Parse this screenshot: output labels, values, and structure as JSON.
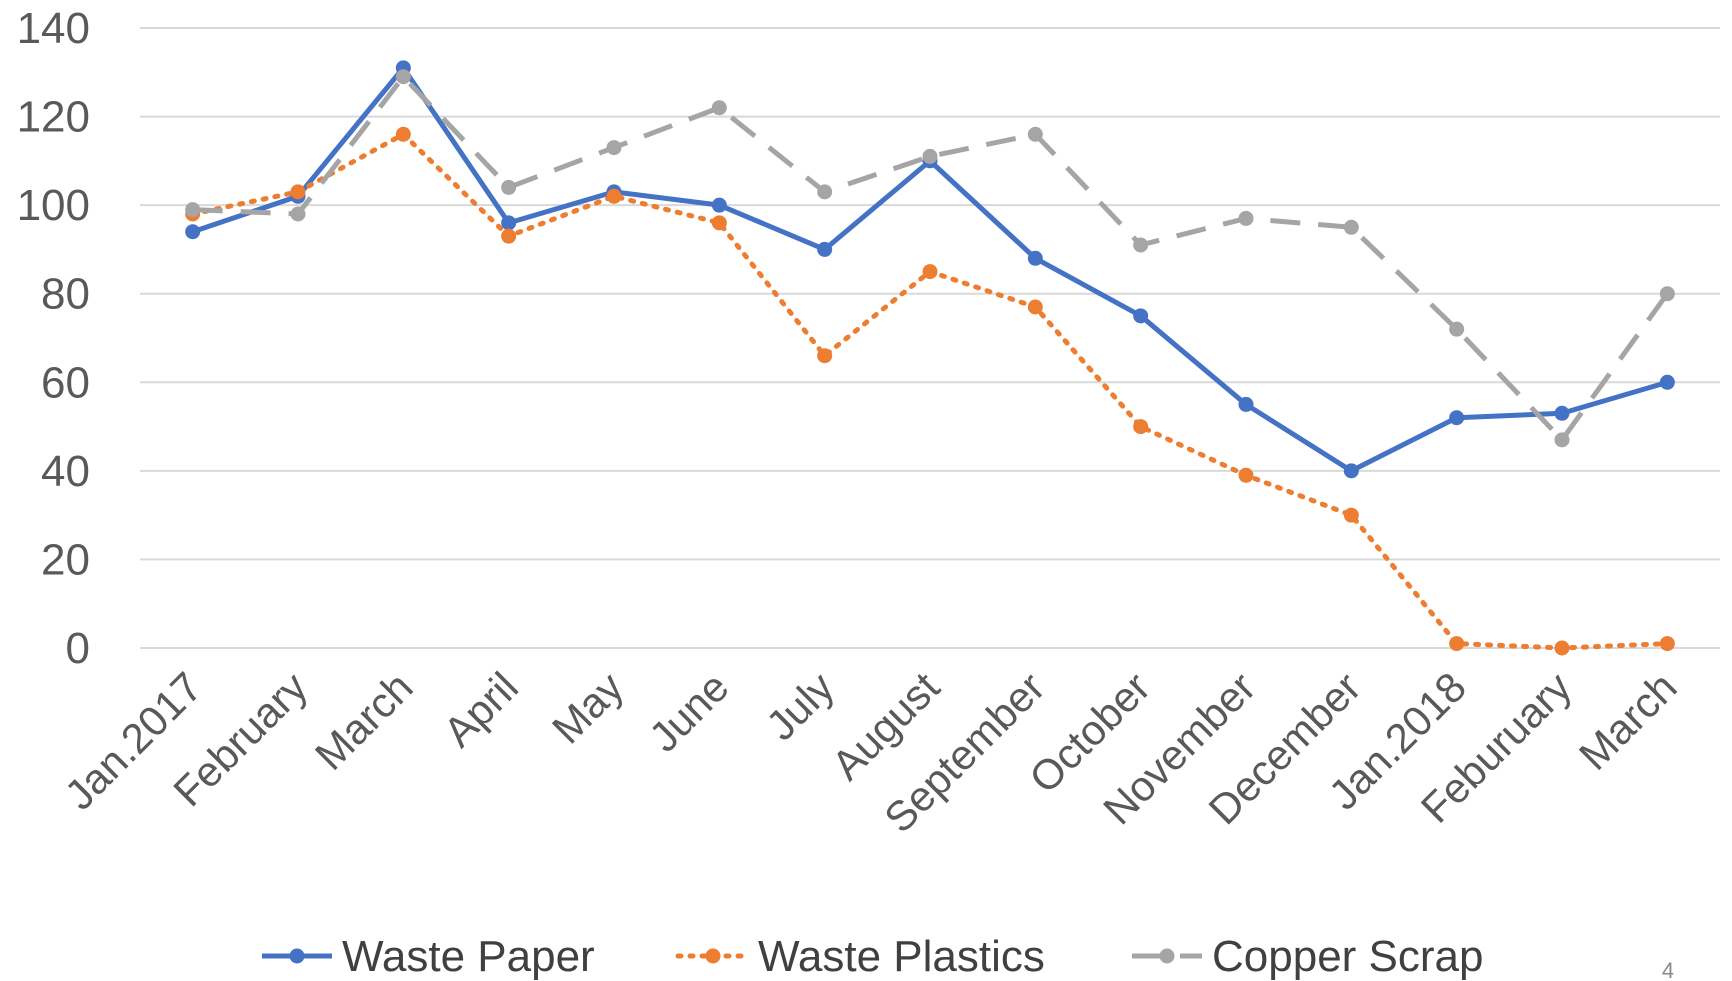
{
  "page_number": "4",
  "chart_data": {
    "type": "line",
    "categories": [
      "Jan.2017",
      "February",
      "March",
      "April",
      "May",
      "June",
      "July",
      "August",
      "September",
      "October",
      "November",
      "December",
      "Jan.2018",
      "Feburuary",
      "March"
    ],
    "series": [
      {
        "name": "Waste Paper",
        "color": "#4472C4",
        "dash": "solid",
        "values": [
          94,
          102,
          131,
          96,
          103,
          100,
          90,
          110,
          88,
          75,
          55,
          40,
          52,
          53,
          60
        ]
      },
      {
        "name": "Waste Plastics",
        "color": "#ED7D31",
        "dash": "dotted",
        "values": [
          98,
          103,
          116,
          93,
          102,
          96,
          66,
          85,
          77,
          50,
          39,
          30,
          1,
          0,
          1
        ]
      },
      {
        "name": "Copper Scrap",
        "color": "#A5A5A5",
        "dash": "dashed",
        "values": [
          99,
          98,
          129,
          104,
          113,
          122,
          103,
          111,
          116,
          91,
          97,
          95,
          72,
          47,
          80
        ]
      }
    ],
    "yticks": [
      0,
      20,
      40,
      60,
      80,
      100,
      120,
      140
    ],
    "ylim": [
      0,
      140
    ],
    "grid": true,
    "legend": "bottom",
    "title": "",
    "xlabel": "",
    "ylabel": ""
  }
}
